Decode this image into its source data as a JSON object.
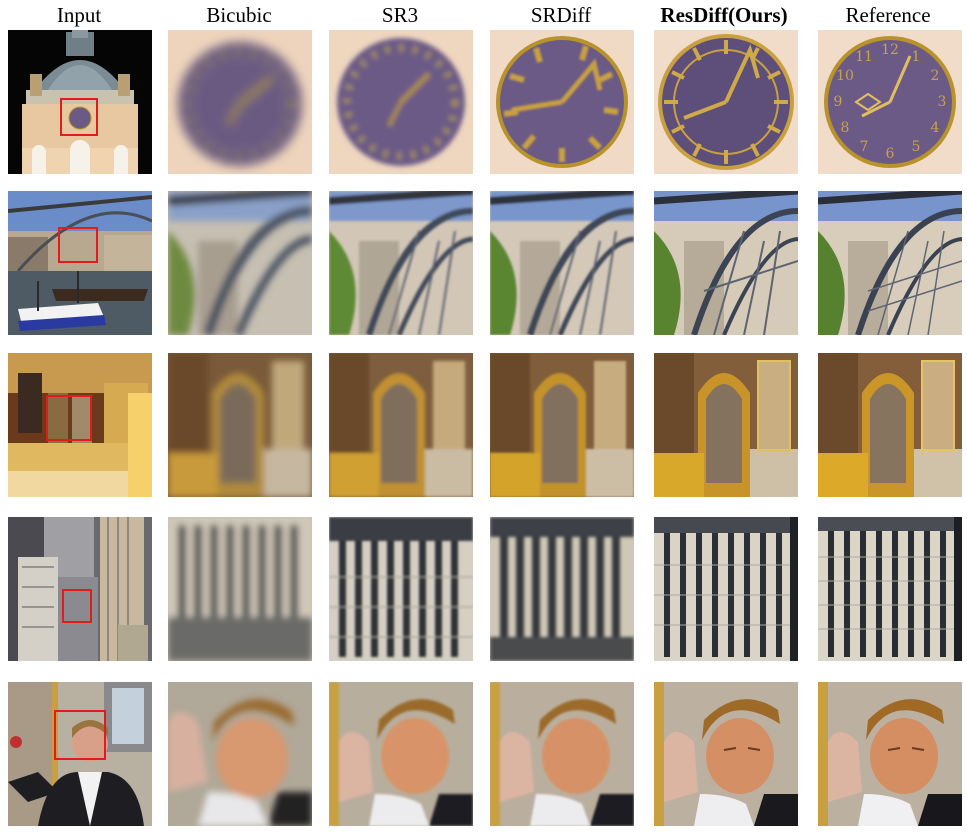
{
  "figure": {
    "columns": [
      {
        "label": "Input",
        "bold": false
      },
      {
        "label": "Bicubic",
        "bold": false
      },
      {
        "label": "SR3",
        "bold": false
      },
      {
        "label": "SRDiff",
        "bold": false
      },
      {
        "label": "ResDiff(Ours)",
        "bold": true
      },
      {
        "label": "Reference",
        "bold": false
      }
    ],
    "rows": [
      {
        "scene": "clock-dome"
      },
      {
        "scene": "iron-bridge"
      },
      {
        "scene": "church-interior"
      },
      {
        "scene": "city-skyscraper"
      },
      {
        "scene": "man-portrait"
      }
    ],
    "clock_numerals": [
      "12",
      "1",
      "2",
      "3",
      "4",
      "5",
      "6",
      "7",
      "8",
      "9",
      "10",
      "11"
    ],
    "colors": {
      "crop_box": "#e21b1b",
      "clock_face": "#6c5a86",
      "clock_gold": "#b8922a"
    }
  }
}
